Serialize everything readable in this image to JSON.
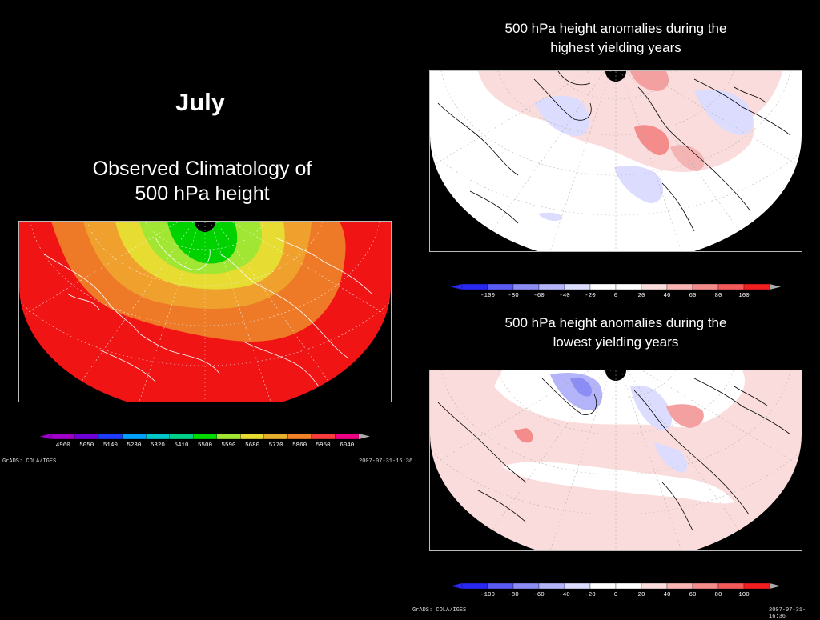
{
  "slide": {
    "month_title": "July",
    "clim_title_line1": "Observed Climatology of",
    "clim_title_line2": "500 hPa height",
    "high_title_line1": "500 hPa height anomalies during the",
    "high_title_line2": "highest yielding years",
    "low_title_line1": "500 hPa height anomalies during the",
    "low_title_line2": "lowest yielding years"
  },
  "footers": {
    "clim_software": "GrADS: COLA/IGES",
    "clim_date": "2007-07-31-16:36",
    "low_software": "GrADS: COLA/IGES",
    "low_date": "2007-07-31-16:36"
  },
  "climatology_legend": {
    "labels": [
      "4960",
      "5050",
      "5140",
      "5230",
      "5320",
      "5410",
      "5500",
      "5590",
      "5680",
      "5770",
      "5860",
      "5950",
      "6040"
    ],
    "colors": [
      "#a000c8",
      "#6e00dc",
      "#1e3cff",
      "#00a0ff",
      "#00c8c8",
      "#00d28c",
      "#00dc00",
      "#a0e632",
      "#e6dc32",
      "#e6af2d",
      "#f08228",
      "#fa3c3c",
      "#f00082"
    ],
    "end_low": "#a000c8",
    "end_high": "#aaaaaa"
  },
  "anomaly_legend": {
    "labels": [
      "-100",
      "-80",
      "-60",
      "-40",
      "-20",
      "0",
      "20",
      "40",
      "60",
      "80",
      "100"
    ],
    "colors": [
      "#2828f0",
      "#5a5af5",
      "#8c8cf5",
      "#b4b4fa",
      "#dcdcff",
      "#ffffff",
      "#ffffff",
      "#fadcdc",
      "#fab4b4",
      "#f58c8c",
      "#f55a5a",
      "#f01e1e"
    ],
    "end_low": "#2828f0",
    "end_high": "#aaaaaa"
  }
}
